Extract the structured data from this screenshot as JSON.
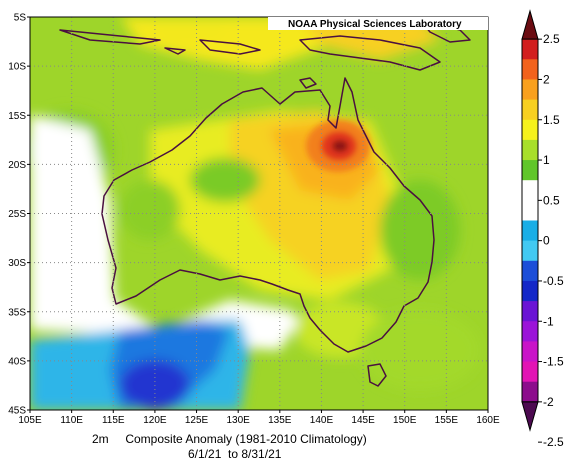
{
  "source_label": "NOAA Physical Sciences Laboratory",
  "caption": {
    "line1_variable": "2m",
    "line1_title": "Composite Anomaly (1981-2010 Climatology)",
    "line2_dates": "6/1/21  to 8/31/21"
  },
  "map": {
    "lon_range": [
      105,
      160
    ],
    "lat_range": [
      -45,
      -5
    ],
    "lon_ticks": [
      "105E",
      "110E",
      "115E",
      "120E",
      "125E",
      "130E",
      "135E",
      "140E",
      "145E",
      "150E",
      "155E",
      "160E"
    ],
    "lat_ticks": [
      "5S",
      "10S",
      "15S",
      "20S",
      "25S",
      "30S",
      "35S",
      "40S",
      "45S"
    ],
    "grid": "dotted"
  },
  "colorbar": {
    "labels": [
      "2.5",
      "2",
      "1.5",
      "1",
      "0.5",
      "0",
      "-0.5",
      "-1",
      "-1.5",
      "-2",
      "-2.5"
    ],
    "colors": [
      "#6b0c12",
      "#d21e1e",
      "#f2621c",
      "#f9a01e",
      "#f7d021",
      "#f5f21c",
      "#a8df2a",
      "#60c62a",
      "#ffffff",
      "#ffffff",
      "#1aaee6",
      "#42c9f2",
      "#1c4ed8",
      "#1428c8",
      "#6a14d4",
      "#9b14d8",
      "#c914c8",
      "#e214b4",
      "#8c0c8c",
      "#4c0a50"
    ]
  },
  "chart_data": {
    "type": "heatmap",
    "variable": "2m",
    "title": "Composite Anomaly (1981-2010 Climatology)",
    "dates": "6/1/21 to 8/31/21",
    "xlim": [
      105,
      160
    ],
    "ylim": [
      -45,
      -5
    ],
    "scale": [
      -2.5,
      2.5
    ],
    "colorbar_ticks": [
      2.5,
      2,
      1.5,
      1,
      0.5,
      0,
      -0.5,
      -1,
      -1.5,
      -2,
      -2.5
    ]
  }
}
